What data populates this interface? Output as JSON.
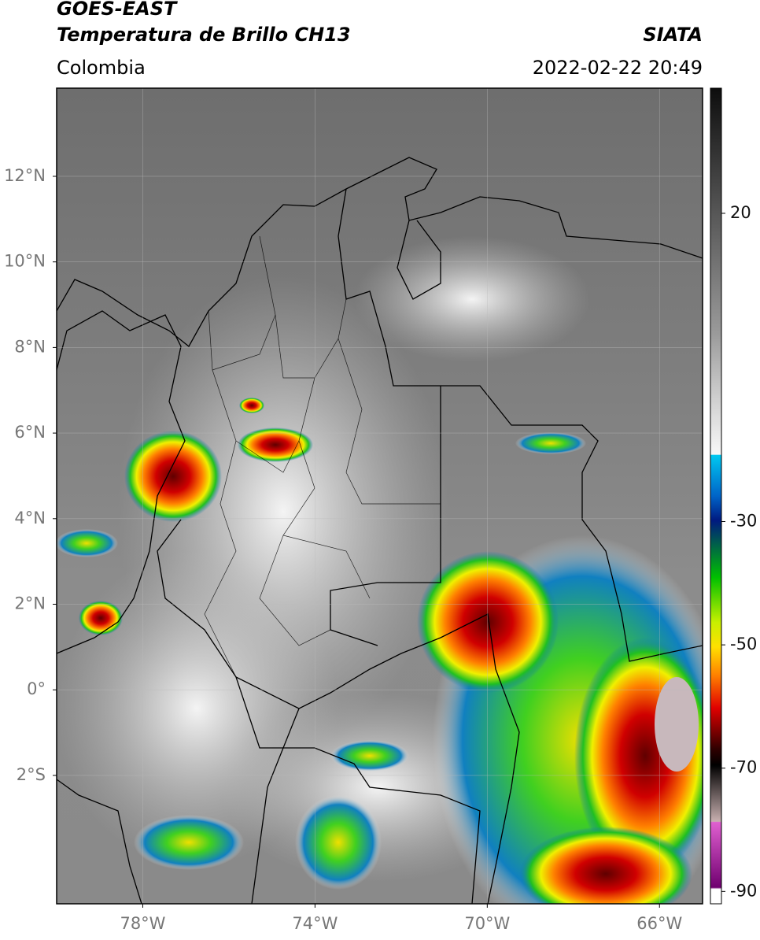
{
  "header": {
    "title_line1": "GOES-EAST",
    "title_line2": "Temperatura de Brillo CH13",
    "region": "Colombia",
    "source": "SIATA",
    "timestamp": "2022-02-22 20:49"
  },
  "map": {
    "lat_range": [
      -5,
      14.06
    ],
    "lon_range": [
      -80,
      -65
    ],
    "lat_ticks": [
      {
        "value": 12,
        "label": "12°N"
      },
      {
        "value": 10,
        "label": "10°N"
      },
      {
        "value": 8,
        "label": "8°N"
      },
      {
        "value": 6,
        "label": "6°N"
      },
      {
        "value": 4,
        "label": "4°N"
      },
      {
        "value": 2,
        "label": "2°N"
      },
      {
        "value": 0,
        "label": "0°"
      },
      {
        "value": -2,
        "label": "2°S"
      }
    ],
    "lon_ticks": [
      {
        "value": -78,
        "label": "78°W"
      },
      {
        "value": -74,
        "label": "74°W"
      },
      {
        "value": -70,
        "label": "70°W"
      },
      {
        "value": -66,
        "label": "66°W"
      }
    ],
    "grid": true
  },
  "colorbar": {
    "range": [
      -92,
      40.3
    ],
    "ticks": [
      20,
      -30,
      -50,
      -70,
      -90
    ]
  }
}
